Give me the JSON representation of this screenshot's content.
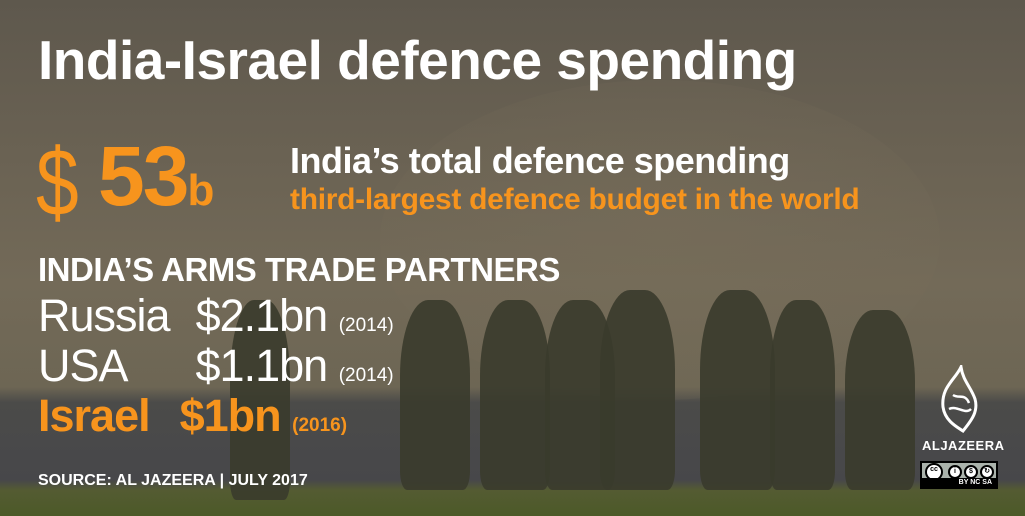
{
  "title": "India-Israel defence spending",
  "headline": {
    "currency": "$",
    "amount": "53",
    "unit": "b",
    "line1": "India’s total defence spending",
    "line2": "third-largest defence budget in the world"
  },
  "partners": {
    "heading": "INDIA’S ARMS TRADE PARTNERS",
    "rows": [
      {
        "country": "Russia",
        "value": "$2.1bn",
        "year": "(2014)"
      },
      {
        "country": "USA",
        "value": "$1.1bn",
        "year": "(2014)"
      },
      {
        "country": "Israel",
        "value": "$1bn",
        "year": "(2016)"
      }
    ]
  },
  "source": "SOURCE: AL JAZEERA  |  JULY 2017",
  "brand": "ALJAZEERA",
  "license": {
    "label": "BY  NC  SA",
    "icon": "creative-commons-icon"
  },
  "colors": {
    "accent": "#f7941d",
    "text": "#ffffff"
  }
}
